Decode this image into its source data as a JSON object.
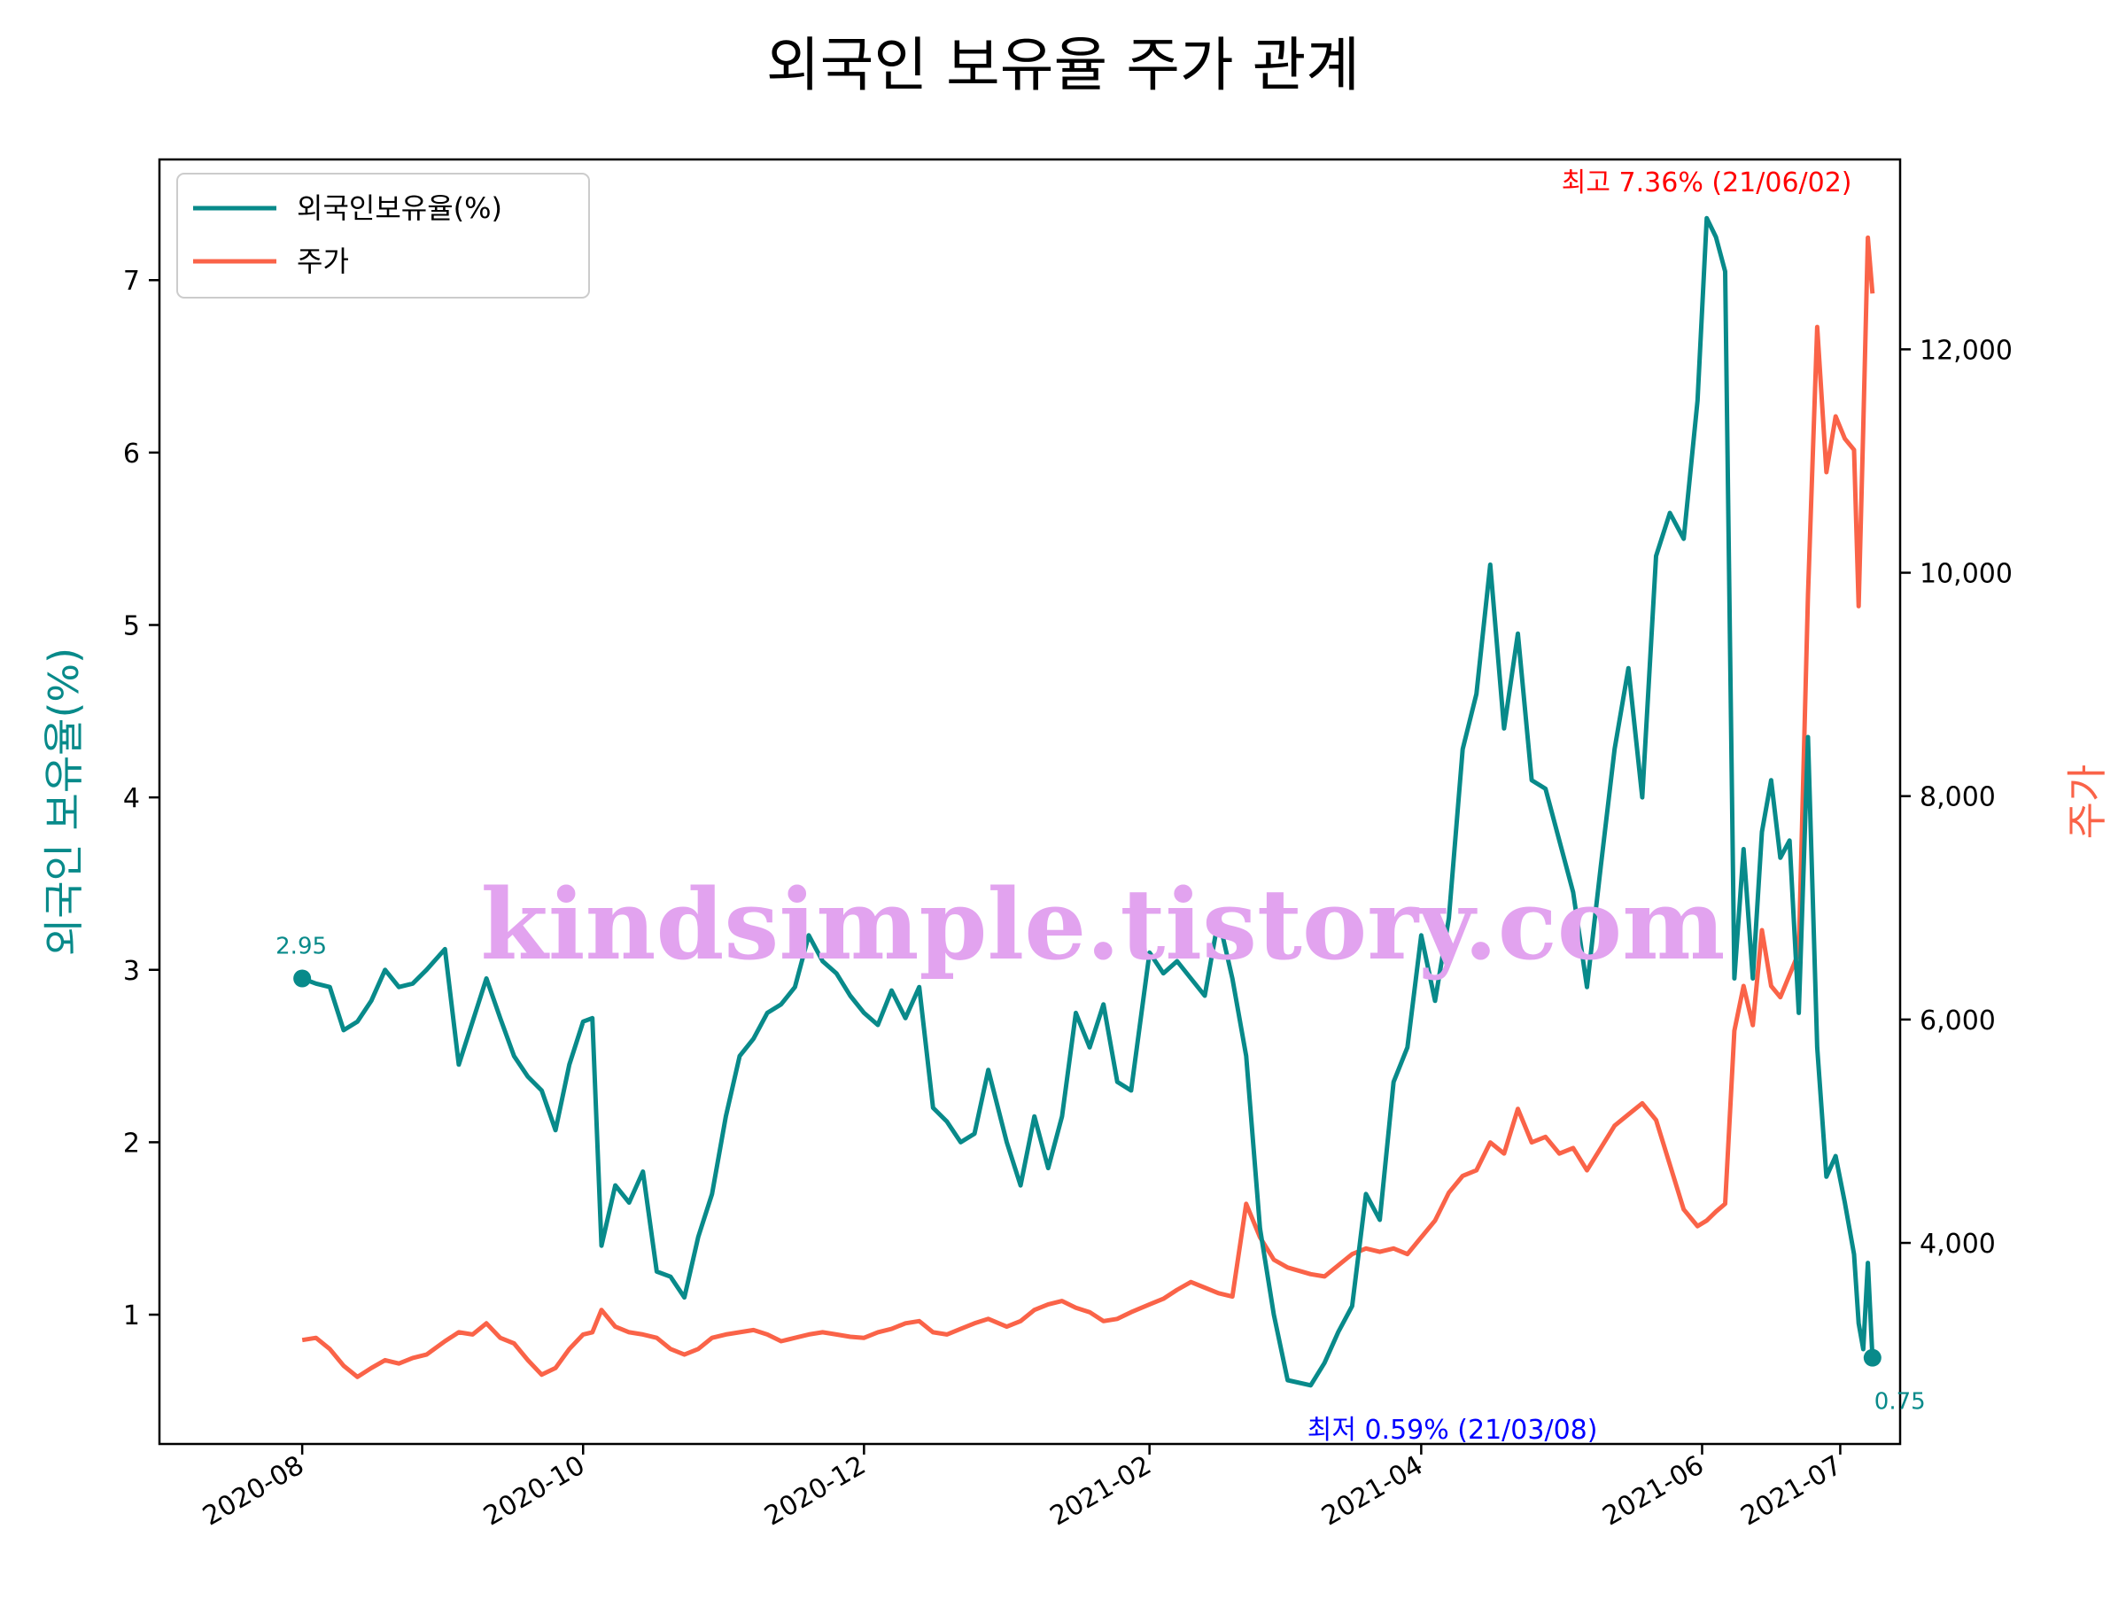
{
  "chart_data": {
    "type": "line",
    "title": "외국인 보유율 주가 관계",
    "xlabel": "",
    "y_left_label": "외국인 보유율(%)",
    "y_right_label": "주가",
    "x_ticks": [
      "2020-08",
      "2020-10",
      "2020-12",
      "2021-02",
      "2021-04",
      "2021-06",
      "2021-07"
    ],
    "y_left_ticks": [
      "1",
      "2",
      "3",
      "4",
      "5",
      "6",
      "7"
    ],
    "y_right_ticks": [
      "4,000",
      "6,000",
      "8,000",
      "10,000",
      "12,000"
    ],
    "y_left_range": [
      0.25,
      7.7
    ],
    "y_right_range": [
      2200,
      13700
    ],
    "grid": false,
    "legend": {
      "position": "top-left",
      "entries": [
        "외국인보유율(%)",
        "주가"
      ]
    },
    "colors": {
      "foreign": "#088a8a",
      "price": "#fa6348",
      "max": "#ff0000",
      "min": "#0000ff"
    },
    "series": [
      {
        "name": "외국인보유율(%)",
        "axis": "left",
        "values": [
          [
            "2020-08-01",
            2.95
          ],
          [
            "2020-08-04",
            2.92
          ],
          [
            "2020-08-07",
            2.9
          ],
          [
            "2020-08-10",
            2.65
          ],
          [
            "2020-08-13",
            2.7
          ],
          [
            "2020-08-16",
            2.82
          ],
          [
            "2020-08-19",
            3.0
          ],
          [
            "2020-08-22",
            2.9
          ],
          [
            "2020-08-25",
            2.92
          ],
          [
            "2020-08-28",
            3.0
          ],
          [
            "2020-09-01",
            3.12
          ],
          [
            "2020-09-04",
            2.45
          ],
          [
            "2020-09-07",
            2.7
          ],
          [
            "2020-09-10",
            2.95
          ],
          [
            "2020-09-13",
            2.72
          ],
          [
            "2020-09-16",
            2.5
          ],
          [
            "2020-09-19",
            2.38
          ],
          [
            "2020-09-22",
            2.3
          ],
          [
            "2020-09-25",
            2.07
          ],
          [
            "2020-09-28",
            2.45
          ],
          [
            "2020-10-01",
            2.7
          ],
          [
            "2020-10-03",
            2.72
          ],
          [
            "2020-10-05",
            1.4
          ],
          [
            "2020-10-08",
            1.75
          ],
          [
            "2020-10-11",
            1.65
          ],
          [
            "2020-10-14",
            1.83
          ],
          [
            "2020-10-17",
            1.25
          ],
          [
            "2020-10-20",
            1.22
          ],
          [
            "2020-10-23",
            1.1
          ],
          [
            "2020-10-26",
            1.45
          ],
          [
            "2020-10-29",
            1.7
          ],
          [
            "2020-11-01",
            2.15
          ],
          [
            "2020-11-04",
            2.5
          ],
          [
            "2020-11-07",
            2.6
          ],
          [
            "2020-11-10",
            2.75
          ],
          [
            "2020-11-13",
            2.8
          ],
          [
            "2020-11-16",
            2.9
          ],
          [
            "2020-11-19",
            3.2
          ],
          [
            "2020-11-22",
            3.05
          ],
          [
            "2020-11-25",
            2.98
          ],
          [
            "2020-11-28",
            2.85
          ],
          [
            "2020-12-01",
            2.75
          ],
          [
            "2020-12-04",
            2.68
          ],
          [
            "2020-12-07",
            2.88
          ],
          [
            "2020-12-10",
            2.72
          ],
          [
            "2020-12-13",
            2.9
          ],
          [
            "2020-12-16",
            2.2
          ],
          [
            "2020-12-19",
            2.12
          ],
          [
            "2020-12-22",
            2.0
          ],
          [
            "2020-12-25",
            2.05
          ],
          [
            "2020-12-28",
            2.42
          ],
          [
            "2021-01-01",
            2.0
          ],
          [
            "2021-01-04",
            1.75
          ],
          [
            "2021-01-07",
            2.15
          ],
          [
            "2021-01-10",
            1.85
          ],
          [
            "2021-01-13",
            2.15
          ],
          [
            "2021-01-16",
            2.75
          ],
          [
            "2021-01-19",
            2.55
          ],
          [
            "2021-01-22",
            2.8
          ],
          [
            "2021-01-25",
            2.35
          ],
          [
            "2021-01-28",
            2.3
          ],
          [
            "2021-02-01",
            3.1
          ],
          [
            "2021-02-04",
            2.98
          ],
          [
            "2021-02-07",
            3.05
          ],
          [
            "2021-02-10",
            2.95
          ],
          [
            "2021-02-13",
            2.85
          ],
          [
            "2021-02-16",
            3.3
          ],
          [
            "2021-02-19",
            2.95
          ],
          [
            "2021-02-22",
            2.5
          ],
          [
            "2021-02-25",
            1.5
          ],
          [
            "2021-02-28",
            1.0
          ],
          [
            "2021-03-03",
            0.62
          ],
          [
            "2021-03-08",
            0.59
          ],
          [
            "2021-03-11",
            0.72
          ],
          [
            "2021-03-14",
            0.9
          ],
          [
            "2021-03-17",
            1.05
          ],
          [
            "2021-03-20",
            1.7
          ],
          [
            "2021-03-23",
            1.55
          ],
          [
            "2021-03-26",
            2.35
          ],
          [
            "2021-03-29",
            2.55
          ],
          [
            "2021-04-01",
            3.2
          ],
          [
            "2021-04-04",
            2.82
          ],
          [
            "2021-04-07",
            3.3
          ],
          [
            "2021-04-10",
            4.28
          ],
          [
            "2021-04-13",
            4.6
          ],
          [
            "2021-04-16",
            5.35
          ],
          [
            "2021-04-19",
            4.4
          ],
          [
            "2021-04-22",
            4.95
          ],
          [
            "2021-04-25",
            4.1
          ],
          [
            "2021-04-28",
            4.05
          ],
          [
            "2021-05-01",
            3.75
          ],
          [
            "2021-05-04",
            3.45
          ],
          [
            "2021-05-07",
            2.9
          ],
          [
            "2021-05-10",
            3.6
          ],
          [
            "2021-05-13",
            4.28
          ],
          [
            "2021-05-16",
            4.75
          ],
          [
            "2021-05-19",
            4.0
          ],
          [
            "2021-05-22",
            5.4
          ],
          [
            "2021-05-25",
            5.65
          ],
          [
            "2021-05-28",
            5.5
          ],
          [
            "2021-05-31",
            6.3
          ],
          [
            "2021-06-02",
            7.36
          ],
          [
            "2021-06-04",
            7.25
          ],
          [
            "2021-06-06",
            7.05
          ],
          [
            "2021-06-08",
            2.95
          ],
          [
            "2021-06-10",
            3.7
          ],
          [
            "2021-06-12",
            2.95
          ],
          [
            "2021-06-14",
            3.8
          ],
          [
            "2021-06-16",
            4.1
          ],
          [
            "2021-06-18",
            3.65
          ],
          [
            "2021-06-20",
            3.75
          ],
          [
            "2021-06-22",
            2.75
          ],
          [
            "2021-06-24",
            4.35
          ],
          [
            "2021-06-26",
            2.55
          ],
          [
            "2021-06-28",
            1.8
          ],
          [
            "2021-06-30",
            1.92
          ],
          [
            "2021-07-02",
            1.65
          ],
          [
            "2021-07-04",
            1.35
          ],
          [
            "2021-07-05",
            0.95
          ],
          [
            "2021-07-06",
            0.8
          ],
          [
            "2021-07-07",
            1.3
          ],
          [
            "2021-07-08",
            0.75
          ]
        ]
      },
      {
        "name": "주가",
        "axis": "right",
        "values": [
          [
            "2020-08-01",
            3130
          ],
          [
            "2020-08-04",
            3150
          ],
          [
            "2020-08-07",
            3050
          ],
          [
            "2020-08-10",
            2900
          ],
          [
            "2020-08-13",
            2800
          ],
          [
            "2020-08-16",
            2880
          ],
          [
            "2020-08-19",
            2950
          ],
          [
            "2020-08-22",
            2920
          ],
          [
            "2020-08-25",
            2970
          ],
          [
            "2020-08-28",
            3000
          ],
          [
            "2020-09-01",
            3120
          ],
          [
            "2020-09-04",
            3200
          ],
          [
            "2020-09-07",
            3180
          ],
          [
            "2020-09-10",
            3280
          ],
          [
            "2020-09-13",
            3150
          ],
          [
            "2020-09-16",
            3100
          ],
          [
            "2020-09-19",
            2950
          ],
          [
            "2020-09-22",
            2820
          ],
          [
            "2020-09-25",
            2880
          ],
          [
            "2020-09-28",
            3050
          ],
          [
            "2020-10-01",
            3180
          ],
          [
            "2020-10-03",
            3200
          ],
          [
            "2020-10-05",
            3400
          ],
          [
            "2020-10-08",
            3250
          ],
          [
            "2020-10-11",
            3200
          ],
          [
            "2020-10-14",
            3180
          ],
          [
            "2020-10-17",
            3150
          ],
          [
            "2020-10-20",
            3050
          ],
          [
            "2020-10-23",
            3000
          ],
          [
            "2020-10-26",
            3050
          ],
          [
            "2020-10-29",
            3150
          ],
          [
            "2020-11-01",
            3180
          ],
          [
            "2020-11-04",
            3200
          ],
          [
            "2020-11-07",
            3220
          ],
          [
            "2020-11-10",
            3180
          ],
          [
            "2020-11-13",
            3120
          ],
          [
            "2020-11-16",
            3150
          ],
          [
            "2020-11-19",
            3180
          ],
          [
            "2020-11-22",
            3200
          ],
          [
            "2020-11-25",
            3180
          ],
          [
            "2020-11-28",
            3160
          ],
          [
            "2020-12-01",
            3150
          ],
          [
            "2020-12-04",
            3200
          ],
          [
            "2020-12-07",
            3230
          ],
          [
            "2020-12-10",
            3280
          ],
          [
            "2020-12-13",
            3300
          ],
          [
            "2020-12-16",
            3200
          ],
          [
            "2020-12-19",
            3180
          ],
          [
            "2020-12-22",
            3230
          ],
          [
            "2020-12-25",
            3280
          ],
          [
            "2020-12-28",
            3320
          ],
          [
            "2021-01-01",
            3250
          ],
          [
            "2021-01-04",
            3300
          ],
          [
            "2021-01-07",
            3400
          ],
          [
            "2021-01-10",
            3450
          ],
          [
            "2021-01-13",
            3480
          ],
          [
            "2021-01-16",
            3420
          ],
          [
            "2021-01-19",
            3380
          ],
          [
            "2021-01-22",
            3300
          ],
          [
            "2021-01-25",
            3320
          ],
          [
            "2021-01-28",
            3380
          ],
          [
            "2021-02-01",
            3450
          ],
          [
            "2021-02-04",
            3500
          ],
          [
            "2021-02-07",
            3580
          ],
          [
            "2021-02-10",
            3650
          ],
          [
            "2021-02-13",
            3600
          ],
          [
            "2021-02-16",
            3550
          ],
          [
            "2021-02-19",
            3520
          ],
          [
            "2021-02-22",
            4350
          ],
          [
            "2021-02-25",
            4050
          ],
          [
            "2021-02-28",
            3850
          ],
          [
            "2021-03-03",
            3780
          ],
          [
            "2021-03-08",
            3720
          ],
          [
            "2021-03-11",
            3700
          ],
          [
            "2021-03-14",
            3800
          ],
          [
            "2021-03-17",
            3900
          ],
          [
            "2021-03-20",
            3950
          ],
          [
            "2021-03-23",
            3920
          ],
          [
            "2021-03-26",
            3950
          ],
          [
            "2021-03-29",
            3900
          ],
          [
            "2021-04-01",
            4050
          ],
          [
            "2021-04-04",
            4200
          ],
          [
            "2021-04-07",
            4450
          ],
          [
            "2021-04-10",
            4600
          ],
          [
            "2021-04-13",
            4650
          ],
          [
            "2021-04-16",
            4900
          ],
          [
            "2021-04-19",
            4800
          ],
          [
            "2021-04-22",
            5200
          ],
          [
            "2021-04-25",
            4900
          ],
          [
            "2021-04-28",
            4950
          ],
          [
            "2021-05-01",
            4800
          ],
          [
            "2021-05-04",
            4850
          ],
          [
            "2021-05-07",
            4650
          ],
          [
            "2021-05-10",
            4850
          ],
          [
            "2021-05-13",
            5050
          ],
          [
            "2021-05-16",
            5150
          ],
          [
            "2021-05-19",
            5250
          ],
          [
            "2021-05-22",
            5100
          ],
          [
            "2021-05-25",
            4700
          ],
          [
            "2021-05-28",
            4300
          ],
          [
            "2021-05-31",
            4150
          ],
          [
            "2021-06-02",
            4200
          ],
          [
            "2021-06-04",
            4280
          ],
          [
            "2021-06-06",
            4350
          ],
          [
            "2021-06-08",
            5900
          ],
          [
            "2021-06-10",
            6300
          ],
          [
            "2021-06-12",
            5950
          ],
          [
            "2021-06-14",
            6800
          ],
          [
            "2021-06-16",
            6300
          ],
          [
            "2021-06-18",
            6200
          ],
          [
            "2021-06-20",
            6400
          ],
          [
            "2021-06-22",
            6600
          ],
          [
            "2021-06-24",
            9800
          ],
          [
            "2021-06-26",
            12200
          ],
          [
            "2021-06-28",
            10900
          ],
          [
            "2021-06-30",
            11400
          ],
          [
            "2021-07-02",
            11200
          ],
          [
            "2021-07-04",
            11100
          ],
          [
            "2021-07-05",
            9700
          ],
          [
            "2021-07-06",
            11300
          ],
          [
            "2021-07-07",
            13000
          ],
          [
            "2021-07-08",
            12500
          ]
        ]
      }
    ],
    "annotations": {
      "max": {
        "label": "최고 7.36% (21/06/02)",
        "date": "2021-06-02",
        "value": 7.36
      },
      "min": {
        "label": "최저 0.59% (21/03/08)",
        "date": "2021-03-08",
        "value": 0.59
      },
      "start": {
        "label": "2.95",
        "date": "2020-08-01",
        "value": 2.95
      },
      "end": {
        "label": "0.75",
        "date": "2021-07-08",
        "value": 0.75
      }
    }
  },
  "watermark": "kindsimple.tistory.com"
}
